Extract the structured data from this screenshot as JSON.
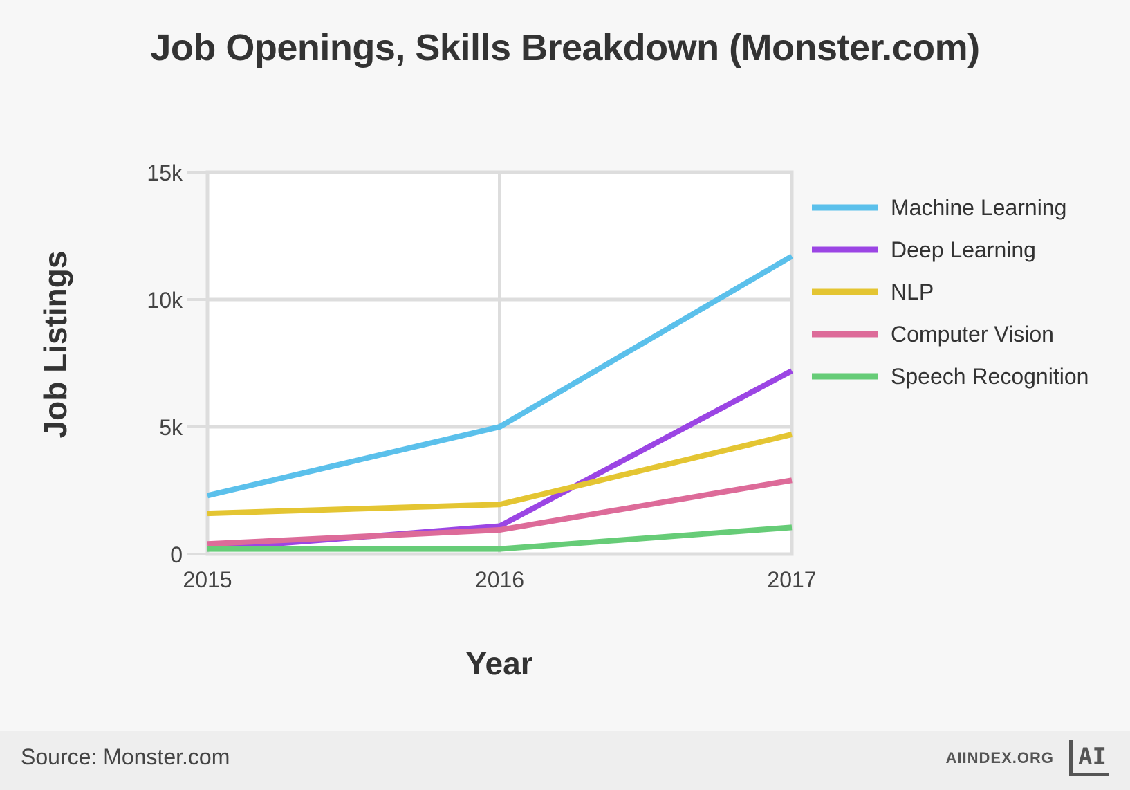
{
  "chart_data": {
    "type": "line",
    "title": "Job Openings, Skills Breakdown (Monster.com)",
    "xlabel": "Year",
    "ylabel": "Job Listings",
    "x": [
      2015,
      2016,
      2017
    ],
    "x_tick_labels": [
      "2015",
      "2016",
      "2017"
    ],
    "y_ticks": [
      0,
      5000,
      10000,
      15000
    ],
    "y_tick_labels": [
      "0",
      "5k",
      "10k",
      "15k"
    ],
    "ylim": [
      0,
      15000
    ],
    "grid": true,
    "legend_position": "right",
    "series": [
      {
        "name": "Machine Learning",
        "color": "#5bc0eb",
        "values": [
          2300,
          5000,
          11700
        ]
      },
      {
        "name": "Deep Learning",
        "color": "#9b45e4",
        "values": [
          200,
          1100,
          7200
        ]
      },
      {
        "name": "NLP",
        "color": "#e4c532",
        "values": [
          1600,
          1950,
          4700
        ]
      },
      {
        "name": "Computer Vision",
        "color": "#dd6b99",
        "values": [
          400,
          950,
          2900
        ]
      },
      {
        "name": "Speech Recognition",
        "color": "#66cc77",
        "values": [
          200,
          200,
          1050
        ]
      }
    ]
  },
  "footer": {
    "source": "Source: Monster.com",
    "org": "AIINDEX.ORG",
    "logo_text": "AI"
  }
}
